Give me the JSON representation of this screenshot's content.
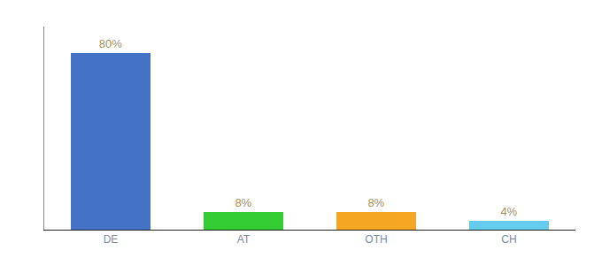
{
  "chart_data": {
    "type": "bar",
    "categories": [
      "DE",
      "AT",
      "OTH",
      "CH"
    ],
    "values": [
      80,
      8,
      8,
      4
    ],
    "value_labels": [
      "80%",
      "8%",
      "8%",
      "4%"
    ],
    "colors": [
      "#4472c4",
      "#33cc33",
      "#f5a623",
      "#66ccee"
    ],
    "ylim": [
      0,
      92
    ],
    "grid": false,
    "data_labels": true,
    "tick_labels": "x"
  }
}
